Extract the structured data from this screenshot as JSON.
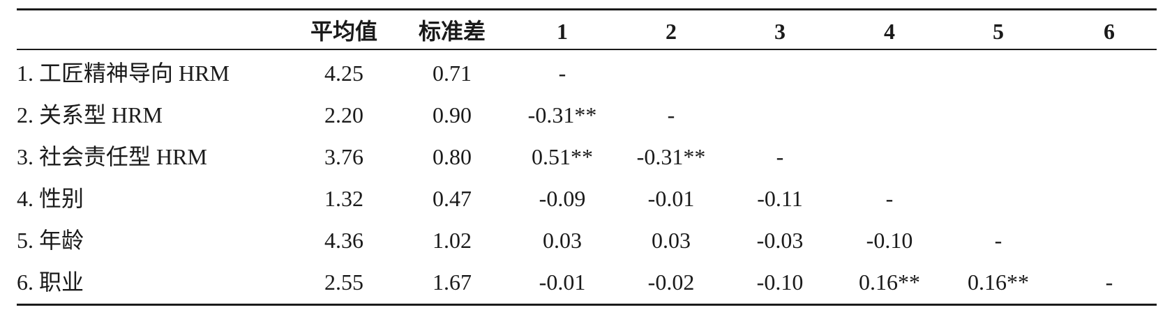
{
  "table": {
    "header": [
      "平均值",
      "标准差",
      "1",
      "2",
      "3",
      "4",
      "5",
      "6"
    ],
    "rows": [
      {
        "label": "1. 工匠精神导向 HRM",
        "cells": [
          "4.25",
          "0.71",
          "-"
        ]
      },
      {
        "label": "2. 关系型 HRM",
        "cells": [
          "2.20",
          "0.90",
          "-0.31**",
          "-"
        ]
      },
      {
        "label": "3. 社会责任型 HRM",
        "cells": [
          "3.76",
          "0.80",
          "0.51**",
          "-0.31**",
          "-"
        ]
      },
      {
        "label": "4. 性别",
        "cells": [
          "1.32",
          "0.47",
          "-0.09",
          "-0.01",
          "-0.11",
          "-"
        ]
      },
      {
        "label": "5. 年龄",
        "cells": [
          "4.36",
          "1.02",
          "0.03",
          "0.03",
          "-0.03",
          "-0.10",
          "-"
        ]
      },
      {
        "label": "6. 职业",
        "cells": [
          "2.55",
          "1.67",
          "-0.01",
          "-0.02",
          "-0.10",
          "0.16**",
          "0.16**",
          "-"
        ]
      }
    ]
  }
}
